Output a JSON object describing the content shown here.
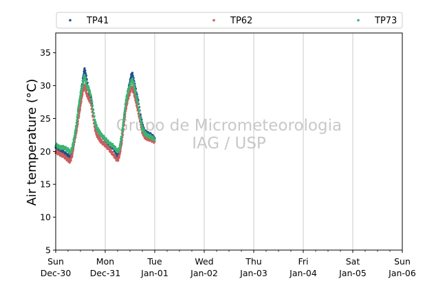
{
  "chart_data": {
    "type": "scatter",
    "ylabel": "Air temperature (°C)",
    "ylim": [
      5,
      38
    ],
    "xlim": [
      "2018-12-30T00:00",
      "2019-01-06T00:00"
    ],
    "yticks": [
      5,
      10,
      15,
      20,
      25,
      30,
      35
    ],
    "xticks": [
      {
        "day": "Sun",
        "date": "Dec-30"
      },
      {
        "day": "Mon",
        "date": "Dec-31"
      },
      {
        "day": "Tue",
        "date": "Jan-01"
      },
      {
        "day": "Wed",
        "date": "Jan-02"
      },
      {
        "day": "Thu",
        "date": "Jan-03"
      },
      {
        "day": "Fri",
        "date": "Jan-04"
      },
      {
        "day": "Sat",
        "date": "Jan-05"
      },
      {
        "day": "Sun",
        "date": "Jan-06"
      }
    ],
    "grid": "vertical",
    "legend_position": "top",
    "watermark": [
      "Grupo de Micrometeorologia",
      "IAG / USP"
    ],
    "series": [
      {
        "name": "TP41",
        "color": "#1f4e8c",
        "x": [
          "2018-12-30T00:00",
          "2018-12-30T02:00",
          "2018-12-30T04:00",
          "2018-12-30T06:00",
          "2018-12-30T07:00",
          "2018-12-30T08:00",
          "2018-12-30T09:00",
          "2018-12-30T10:00",
          "2018-12-30T11:00",
          "2018-12-30T12:00",
          "2018-12-30T13:00",
          "2018-12-30T14:00",
          "2018-12-30T15:00",
          "2018-12-30T16:00",
          "2018-12-30T17:00",
          "2018-12-30T18:00",
          "2018-12-30T19:00",
          "2018-12-30T20:00",
          "2018-12-30T21:00",
          "2018-12-30T22:00",
          "2018-12-31T00:00",
          "2018-12-31T02:00",
          "2018-12-31T04:00",
          "2018-12-31T06:00",
          "2018-12-31T07:00",
          "2018-12-31T08:00",
          "2018-12-31T09:00",
          "2018-12-31T10:00",
          "2018-12-31T11:00",
          "2018-12-31T12:00",
          "2018-12-31T13:00",
          "2018-12-31T14:00",
          "2018-12-31T15:00",
          "2018-12-31T16:00",
          "2018-12-31T17:00",
          "2018-12-31T18:00",
          "2018-12-31T19:00",
          "2018-12-31T20:00",
          "2018-12-31T22:00",
          "2019-01-01T00:00"
        ],
        "y": [
          20.8,
          20.2,
          19.8,
          19.3,
          19.4,
          19.8,
          21.5,
          23.5,
          26.0,
          28.5,
          30.5,
          32.5,
          31.0,
          29.0,
          28.2,
          26.5,
          24.5,
          23.5,
          23.0,
          22.5,
          21.8,
          21.0,
          20.5,
          19.2,
          20.0,
          22.0,
          24.5,
          27.5,
          29.0,
          30.5,
          32.0,
          30.5,
          29.0,
          27.5,
          25.5,
          24.0,
          23.0,
          22.8,
          22.5,
          22.0
        ]
      },
      {
        "name": "TP62",
        "color": "#cd5c5c",
        "x": [
          "2018-12-30T00:00",
          "2018-12-30T02:00",
          "2018-12-30T04:00",
          "2018-12-30T06:00",
          "2018-12-30T07:00",
          "2018-12-30T08:00",
          "2018-12-30T09:00",
          "2018-12-30T10:00",
          "2018-12-30T11:00",
          "2018-12-30T12:00",
          "2018-12-30T13:00",
          "2018-12-30T14:00",
          "2018-12-30T15:00",
          "2018-12-30T16:00",
          "2018-12-30T17:00",
          "2018-12-30T18:00",
          "2018-12-30T19:00",
          "2018-12-30T20:00",
          "2018-12-30T21:00",
          "2018-12-30T22:00",
          "2018-12-31T00:00",
          "2018-12-31T02:00",
          "2018-12-31T04:00",
          "2018-12-31T06:00",
          "2018-12-31T07:00",
          "2018-12-31T08:00",
          "2018-12-31T09:00",
          "2018-12-31T10:00",
          "2018-12-31T11:00",
          "2018-12-31T12:00",
          "2018-12-31T13:00",
          "2018-12-31T14:00",
          "2018-12-31T15:00",
          "2018-12-31T16:00",
          "2018-12-31T17:00",
          "2018-12-31T18:00",
          "2018-12-31T19:00",
          "2018-12-31T20:00",
          "2018-12-31T22:00",
          "2019-01-01T00:00"
        ],
        "y": [
          20.0,
          19.6,
          19.3,
          18.7,
          18.5,
          19.5,
          21.5,
          23.0,
          25.0,
          27.0,
          29.0,
          30.0,
          28.8,
          28.0,
          27.5,
          25.5,
          23.5,
          22.5,
          22.0,
          21.5,
          21.0,
          20.3,
          19.5,
          18.6,
          19.5,
          21.5,
          24.0,
          26.5,
          28.0,
          29.0,
          29.8,
          28.8,
          27.5,
          26.0,
          24.5,
          23.0,
          22.3,
          22.0,
          21.8,
          21.5
        ]
      },
      {
        "name": "TP73",
        "color": "#3cb371",
        "x": [
          "2018-12-30T00:00",
          "2018-12-30T02:00",
          "2018-12-30T04:00",
          "2018-12-30T06:00",
          "2018-12-30T07:00",
          "2018-12-30T08:00",
          "2018-12-30T09:00",
          "2018-12-30T10:00",
          "2018-12-30T11:00",
          "2018-12-30T12:00",
          "2018-12-30T13:00",
          "2018-12-30T14:00",
          "2018-12-30T15:00",
          "2018-12-30T16:00",
          "2018-12-30T17:00",
          "2018-12-30T18:00",
          "2018-12-30T19:00",
          "2018-12-30T20:00",
          "2018-12-30T21:00",
          "2018-12-30T22:00",
          "2018-12-31T00:00",
          "2018-12-31T02:00",
          "2018-12-31T04:00",
          "2018-12-31T06:00",
          "2018-12-31T07:00",
          "2018-12-31T08:00",
          "2018-12-31T09:00",
          "2018-12-31T10:00",
          "2018-12-31T11:00",
          "2018-12-31T12:00",
          "2018-12-31T13:00",
          "2018-12-31T14:00",
          "2018-12-31T15:00",
          "2018-12-31T16:00",
          "2018-12-31T17:00",
          "2018-12-31T18:00",
          "2018-12-31T19:00",
          "2018-12-31T20:00",
          "2018-12-31T22:00",
          "2019-01-01T00:00"
        ],
        "y": [
          21.0,
          20.6,
          20.6,
          20.2,
          19.8,
          20.5,
          22.0,
          24.0,
          26.5,
          28.5,
          30.2,
          31.5,
          30.0,
          29.5,
          28.5,
          26.5,
          24.5,
          23.5,
          23.0,
          22.5,
          21.9,
          21.2,
          20.8,
          20.0,
          20.5,
          22.5,
          24.8,
          27.5,
          29.0,
          30.0,
          31.0,
          30.0,
          28.5,
          27.0,
          25.0,
          23.5,
          22.8,
          22.5,
          22.2,
          21.8
        ]
      }
    ]
  }
}
